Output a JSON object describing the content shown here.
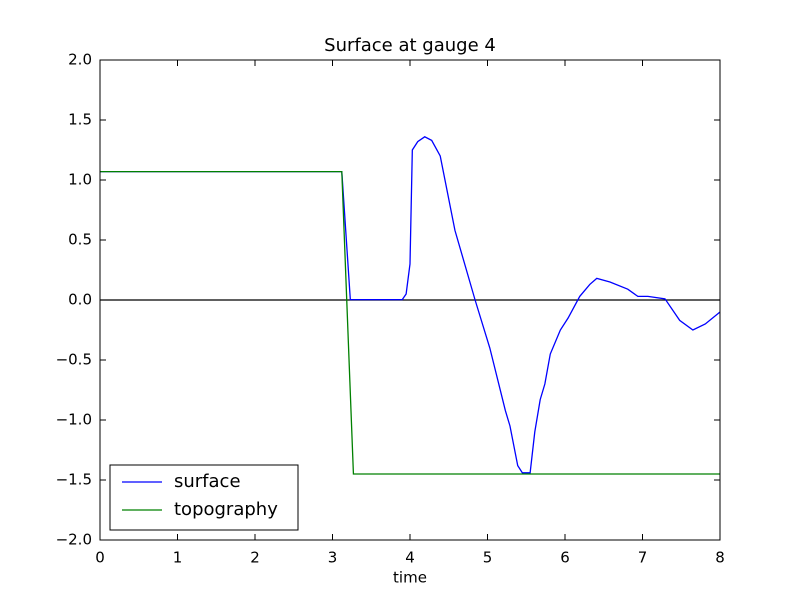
{
  "chart_data": {
    "type": "line",
    "title": "Surface at gauge 4",
    "x_label": "time",
    "xlim": [
      0,
      8
    ],
    "xticks": [
      0,
      1,
      2,
      3,
      4,
      5,
      6,
      7,
      8
    ],
    "ylim": [
      -2,
      2
    ],
    "yticks": [
      {
        "value": -2,
        "label": "−2.0"
      },
      {
        "value": -1.5,
        "label": "−1.5"
      },
      {
        "value": -1,
        "label": "−1.0"
      },
      {
        "value": -0.5,
        "label": "−0.5"
      },
      {
        "value": 0,
        "label": "0.0"
      },
      0.5,
      {
        "value": 1,
        "label": "1.0"
      },
      1.5,
      {
        "value": 2,
        "label": "2.0"
      }
    ],
    "hline": 0,
    "legend": "lower left",
    "series": [
      {
        "name": "surface",
        "color": "#0000ff",
        "x": [
          0,
          3.12,
          3.23,
          3.9,
          3.95,
          4.0,
          4.03,
          4.1,
          4.19,
          4.28,
          4.39,
          4.58,
          4.84,
          5.03,
          5.23,
          5.29,
          5.39,
          5.45,
          5.55,
          5.61,
          5.68,
          5.74,
          5.81,
          5.94,
          6.04,
          6.19,
          6.32,
          6.41,
          6.58,
          6.81,
          6.94,
          7.07,
          7.29,
          7.48,
          7.65,
          7.81,
          8
        ],
        "values": [
          1.07,
          1.07,
          0.003,
          0.003,
          0.05,
          0.3,
          1.25,
          1.32,
          1.36,
          1.33,
          1.2,
          0.58,
          0,
          -0.4,
          -0.92,
          -1.05,
          -1.38,
          -1.44,
          -1.44,
          -1.1,
          -0.83,
          -0.7,
          -0.45,
          -0.25,
          -0.15,
          0.03,
          0.13,
          0.18,
          0.15,
          0.09,
          0.03,
          0.03,
          0.01,
          -0.17,
          -0.25,
          -0.2,
          -0.1
        ]
      },
      {
        "name": "topography",
        "color": "#008000",
        "x": [
          0,
          3.12,
          3.27,
          8
        ],
        "values": [
          1.07,
          1.07,
          -1.45,
          -1.45
        ]
      }
    ]
  }
}
